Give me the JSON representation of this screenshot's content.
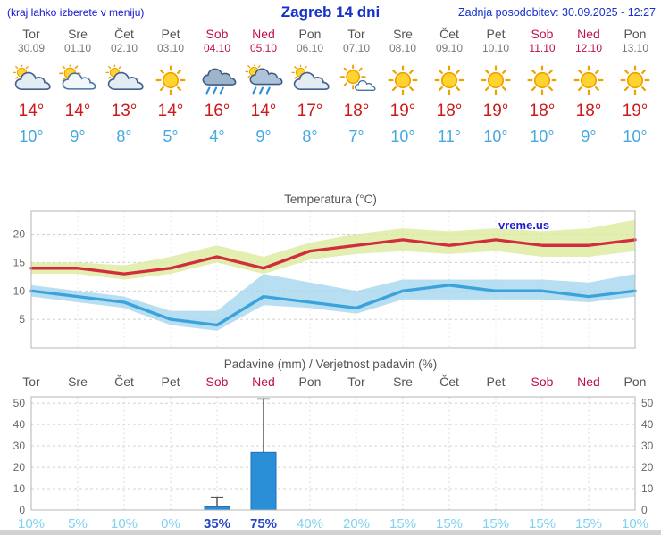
{
  "header": {
    "left_note": "(kraj lahko izberete v meniju)",
    "title": "Zagreb 14 dni",
    "updated": "Zadnja posodobitev: 30.09.2025 - 12:27"
  },
  "colors": {
    "accent_blue": "#1530cc",
    "weekend_red": "#c01048",
    "temp_high_red": "#cc1a1a",
    "temp_low_blue": "#45a8e0",
    "prob_light": "#7fd2f0",
    "prob_dark": "#2545c8",
    "bar_blue": "#2b8fd8"
  },
  "forecast": {
    "days": [
      {
        "name": "Tor",
        "date": "30.09",
        "weekend": false,
        "icon": "mostly-cloudy",
        "high": 14,
        "low": 10
      },
      {
        "name": "Sre",
        "date": "01.10",
        "weekend": false,
        "icon": "partly-sunny",
        "high": 14,
        "low": 9
      },
      {
        "name": "Čet",
        "date": "02.10",
        "weekend": false,
        "icon": "mostly-cloudy",
        "high": 13,
        "low": 8
      },
      {
        "name": "Pet",
        "date": "03.10",
        "weekend": false,
        "icon": "sunny",
        "high": 14,
        "low": 5
      },
      {
        "name": "Sob",
        "date": "04.10",
        "weekend": true,
        "icon": "rain",
        "high": 16,
        "low": 4
      },
      {
        "name": "Ned",
        "date": "05.10",
        "weekend": true,
        "icon": "sun-rain",
        "high": 14,
        "low": 9
      },
      {
        "name": "Pon",
        "date": "06.10",
        "weekend": false,
        "icon": "mostly-cloudy",
        "high": 17,
        "low": 8
      },
      {
        "name": "Tor",
        "date": "07.10",
        "weekend": false,
        "icon": "mostly-sunny",
        "high": 18,
        "low": 7
      },
      {
        "name": "Sre",
        "date": "08.10",
        "weekend": false,
        "icon": "sunny",
        "high": 19,
        "low": 10
      },
      {
        "name": "Čet",
        "date": "09.10",
        "weekend": false,
        "icon": "sunny",
        "high": 18,
        "low": 11
      },
      {
        "name": "Pet",
        "date": "10.10",
        "weekend": false,
        "icon": "sunny",
        "high": 19,
        "low": 10
      },
      {
        "name": "Sob",
        "date": "11.10",
        "weekend": true,
        "icon": "sunny",
        "high": 18,
        "low": 10
      },
      {
        "name": "Ned",
        "date": "12.10",
        "weekend": true,
        "icon": "sunny",
        "high": 18,
        "low": 9
      },
      {
        "name": "Pon",
        "date": "13.10",
        "weekend": false,
        "icon": "sunny",
        "high": 19,
        "low": 10
      }
    ]
  },
  "chart_data": [
    {
      "type": "area",
      "title": "Temperatura (°C)",
      "watermark": "vreme.us",
      "x_labels": [
        "Tor",
        "Sre",
        "Čet",
        "Pet",
        "Sob",
        "Ned",
        "Pon",
        "Tor",
        "Sre",
        "Čet",
        "Pet",
        "Sob",
        "Ned",
        "Pon"
      ],
      "ylim": [
        0,
        24
      ],
      "yticks": [
        5,
        10,
        15,
        20
      ],
      "grid": true,
      "legend": "none",
      "series": [
        {
          "name": "temp-max",
          "color": "#d22d3c",
          "values": [
            14,
            14,
            13,
            14,
            16,
            14,
            17,
            18,
            19,
            18,
            19,
            18,
            18,
            19
          ]
        },
        {
          "name": "temp-max-band-upper",
          "color": "#dcea9e",
          "values": [
            15,
            15,
            14.5,
            16,
            18,
            16,
            18.5,
            20,
            21,
            20.5,
            21,
            20.5,
            21,
            22.5
          ]
        },
        {
          "name": "temp-max-band-lower",
          "color": "#dcea9e",
          "values": [
            13,
            13,
            12,
            13,
            15,
            13,
            15.5,
            16.5,
            17,
            16.5,
            17,
            16,
            16,
            17
          ]
        },
        {
          "name": "temp-min",
          "color": "#3ba3dc",
          "values": [
            10,
            9,
            8,
            5,
            4,
            9,
            8,
            7,
            10,
            11,
            10,
            10,
            9,
            10
          ]
        },
        {
          "name": "temp-min-band-upper",
          "color": "#a6d7ee",
          "values": [
            11,
            10,
            9,
            6.5,
            6.5,
            13,
            11.5,
            10,
            12,
            12,
            12,
            12,
            11.5,
            13
          ]
        },
        {
          "name": "temp-min-band-lower",
          "color": "#a6d7ee",
          "values": [
            9,
            8,
            7,
            4,
            3,
            7.5,
            7,
            6,
            8.5,
            8.5,
            8.5,
            8.5,
            8,
            9
          ]
        }
      ]
    },
    {
      "type": "bar",
      "title": "Padavine (mm) / Verjetnost padavin (%)",
      "x_labels": [
        "Tor",
        "Sre",
        "Čet",
        "Pet",
        "Sob",
        "Ned",
        "Pon",
        "Tor",
        "Sre",
        "Čet",
        "Pet",
        "Sob",
        "Ned",
        "Pon"
      ],
      "weekend_flags": [
        false,
        false,
        false,
        false,
        true,
        true,
        false,
        false,
        false,
        false,
        false,
        true,
        true,
        false
      ],
      "ylim": [
        0,
        53
      ],
      "yticks": [
        0,
        10,
        20,
        30,
        40,
        50
      ],
      "bars_mm": [
        0,
        0,
        0,
        0,
        1.5,
        27,
        0,
        0,
        0,
        0,
        0,
        0,
        0,
        0
      ],
      "whisker_max": [
        0,
        0,
        0,
        0,
        6,
        52,
        0,
        0,
        0,
        0,
        0,
        0,
        0,
        0
      ],
      "bar_color": "#2b8fd8",
      "prob_labels": [
        "10%",
        "5%",
        "10%",
        "0%",
        "35%",
        "75%",
        "40%",
        "20%",
        "15%",
        "15%",
        "15%",
        "15%",
        "15%",
        "10%"
      ],
      "prob_highlight": [
        false,
        false,
        false,
        false,
        true,
        true,
        false,
        false,
        false,
        false,
        false,
        false,
        false,
        false
      ]
    }
  ]
}
